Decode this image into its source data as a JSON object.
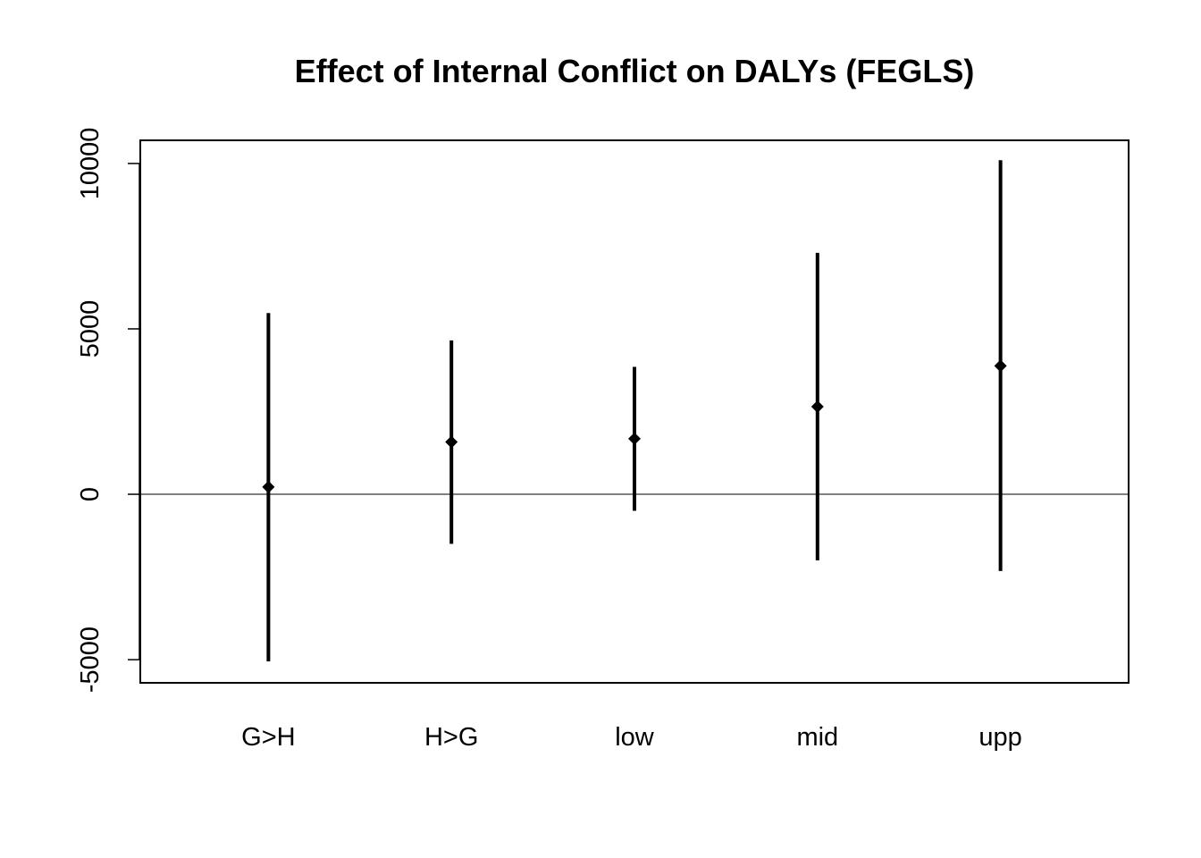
{
  "chart_data": {
    "type": "errorbar",
    "title": "Effect of Internal Conflict on DALYs (FEGLS)",
    "xlabel": "",
    "ylabel": "",
    "categories": [
      "G>H",
      "H>G",
      "low",
      "mid",
      "upp"
    ],
    "estimates": [
      220,
      1580,
      1680,
      2650,
      3880
    ],
    "lower": [
      -5050,
      -1500,
      -500,
      -2000,
      -2320
    ],
    "upper": [
      5480,
      4650,
      3850,
      7300,
      10100
    ],
    "ylim": [
      -5700,
      10700
    ],
    "xlim": [
      0.3,
      5.7
    ],
    "yticks": [
      -5000,
      0,
      5000,
      10000
    ],
    "reference_line": 0,
    "grid": false,
    "marker": "filled-diamond",
    "color": "#000000"
  }
}
